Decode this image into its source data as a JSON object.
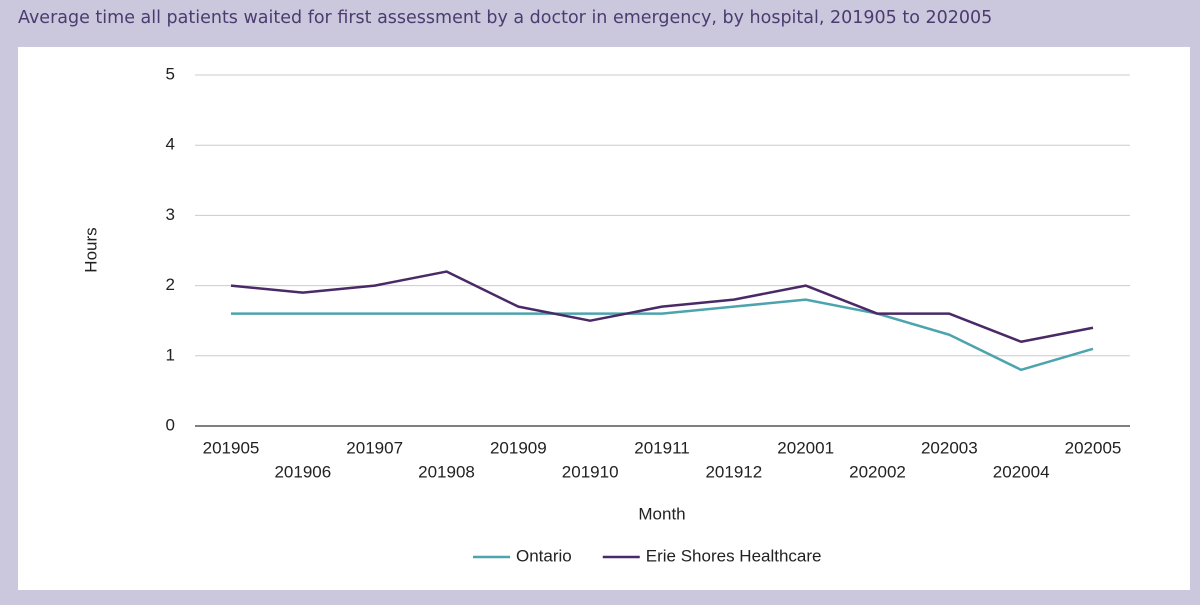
{
  "chart_data": {
    "type": "line",
    "title": "Average time all patients waited for first assessment by a doctor in emergency, by hospital, 201905 to 202005",
    "x_label": "Month",
    "y_label": "Hours",
    "categories": [
      "201905",
      "201906",
      "201907",
      "201908",
      "201909",
      "201910",
      "201911",
      "201912",
      "202001",
      "202002",
      "202003",
      "202004",
      "202005"
    ],
    "series": [
      {
        "name": "Ontario",
        "color": "#4ea4ae",
        "values": [
          1.6,
          1.6,
          1.6,
          1.6,
          1.6,
          1.6,
          1.6,
          1.7,
          1.8,
          1.6,
          1.3,
          0.8,
          1.1
        ]
      },
      {
        "name": "Erie Shores Healthcare",
        "color": "#4a2a66",
        "values": [
          2.0,
          1.9,
          2.0,
          2.2,
          1.7,
          1.5,
          1.7,
          1.8,
          2.0,
          1.6,
          1.6,
          1.2,
          1.4
        ]
      }
    ],
    "ylim": [
      0,
      5
    ],
    "yticks": [
      0,
      1,
      2,
      3,
      4,
      5
    ],
    "grid": true,
    "legend": "bottom"
  }
}
